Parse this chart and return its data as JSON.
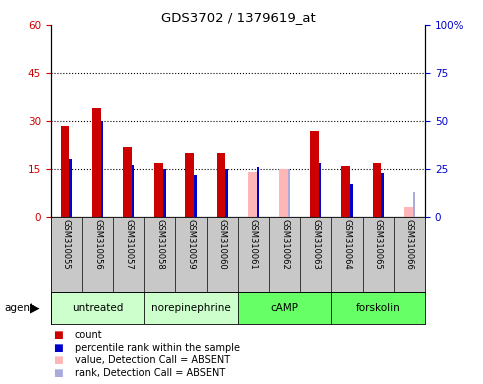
{
  "title": "GDS3702 / 1379619_at",
  "samples": [
    "GSM310055",
    "GSM310056",
    "GSM310057",
    "GSM310058",
    "GSM310059",
    "GSM310060",
    "GSM310061",
    "GSM310062",
    "GSM310063",
    "GSM310064",
    "GSM310065",
    "GSM310066"
  ],
  "count_values": [
    28.5,
    34.0,
    22.0,
    17.0,
    20.0,
    20.0,
    null,
    null,
    27.0,
    16.0,
    17.0,
    null
  ],
  "rank_values": [
    30.0,
    50.0,
    27.0,
    25.0,
    22.0,
    25.0,
    26.0,
    null,
    28.0,
    17.0,
    23.0,
    null
  ],
  "absent_count": [
    null,
    null,
    null,
    null,
    null,
    null,
    14.0,
    15.0,
    null,
    null,
    null,
    3.0
  ],
  "absent_rank": [
    null,
    null,
    null,
    null,
    null,
    null,
    null,
    25.0,
    null,
    null,
    null,
    13.0
  ],
  "agents": [
    {
      "label": "untreated",
      "start": 0,
      "end": 3,
      "color": "#CCFFCC"
    },
    {
      "label": "norepinephrine",
      "start": 3,
      "end": 6,
      "color": "#CCFFCC"
    },
    {
      "label": "cAMP",
      "start": 6,
      "end": 9,
      "color": "#66FF66"
    },
    {
      "label": "forskolin",
      "start": 9,
      "end": 12,
      "color": "#66FF66"
    }
  ],
  "left_ylim": [
    0,
    60
  ],
  "right_ylim": [
    0,
    100
  ],
  "left_yticks": [
    0,
    15,
    30,
    45,
    60
  ],
  "right_yticks": [
    0,
    25,
    50,
    75,
    100
  ],
  "right_yticklabels": [
    "0",
    "25",
    "50",
    "75",
    "100%"
  ],
  "count_color": "#CC0000",
  "rank_color": "#0000CC",
  "absent_count_color": "#FFB6B6",
  "absent_rank_color": "#AAAADD",
  "bg_color": "#C8C8C8",
  "dotted_lines": [
    15,
    30,
    45
  ],
  "legend_items": [
    {
      "label": "count",
      "color": "#CC0000"
    },
    {
      "label": "percentile rank within the sample",
      "color": "#0000CC"
    },
    {
      "label": "value, Detection Call = ABSENT",
      "color": "#FFB6B6"
    },
    {
      "label": "rank, Detection Call = ABSENT",
      "color": "#AAAADD"
    }
  ]
}
